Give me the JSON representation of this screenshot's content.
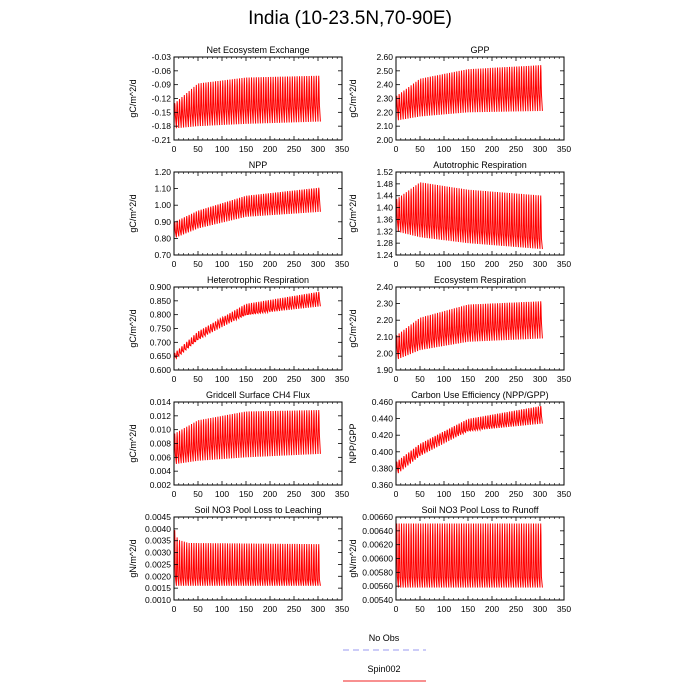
{
  "figure": {
    "title": "India (10-23.5N,70-90E)",
    "legend": {
      "entries": [
        {
          "label": "No Obs",
          "color": "#9a9af0",
          "style": "dashed"
        },
        {
          "label": "Spin002",
          "color": "#f02020",
          "style": "solid"
        }
      ]
    },
    "series_color": "#ff0000"
  },
  "chart_data": [
    {
      "type": "line",
      "title": "Net Ecosystem Exchange",
      "ylabel": "gC/m^2/d",
      "xlim": [
        0,
        350
      ],
      "xticks": [
        "0",
        "50",
        "100",
        "150",
        "200",
        "250",
        "300",
        "350"
      ],
      "ylim": [
        -0.21,
        -0.03
      ],
      "yticks": [
        "-0.21",
        "-0.18",
        "-0.15",
        "-0.12",
        "-0.09",
        "-0.06",
        "-0.03"
      ],
      "series": [
        {
          "x_range": [
            0,
            305
          ],
          "cycles": 61,
          "upper": [
            [
              0,
              -0.13
            ],
            [
              50,
              -0.085
            ],
            [
              150,
              -0.072
            ],
            [
              305,
              -0.068
            ]
          ],
          "lower": [
            [
              0,
              -0.185
            ],
            [
              50,
              -0.18
            ],
            [
              150,
              -0.175
            ],
            [
              305,
              -0.17
            ]
          ],
          "mid": [
            [
              0,
              -0.155
            ],
            [
              100,
              -0.14
            ],
            [
              305,
              -0.13
            ]
          ]
        }
      ]
    },
    {
      "type": "line",
      "title": "GPP",
      "ylabel": "gC/m^2/d",
      "xlim": [
        0,
        350
      ],
      "xticks": [
        "0",
        "50",
        "100",
        "150",
        "200",
        "250",
        "300",
        "350"
      ],
      "ylim": [
        2.0,
        2.6
      ],
      "yticks": [
        "2.00",
        "2.10",
        "2.20",
        "2.30",
        "2.40",
        "2.50",
        "2.60"
      ],
      "series": [
        {
          "x_range": [
            0,
            305
          ],
          "cycles": 61,
          "upper": [
            [
              0,
              2.32
            ],
            [
              50,
              2.45
            ],
            [
              150,
              2.52
            ],
            [
              305,
              2.55
            ]
          ],
          "lower": [
            [
              0,
              2.14
            ],
            [
              50,
              2.17
            ],
            [
              150,
              2.2
            ],
            [
              305,
              2.21
            ]
          ],
          "mid": [
            [
              0,
              2.24
            ],
            [
              100,
              2.31
            ],
            [
              305,
              2.35
            ]
          ]
        }
      ]
    },
    {
      "type": "line",
      "title": "NPP",
      "ylabel": "gC/m^2/d",
      "xlim": [
        0,
        350
      ],
      "xticks": [
        "0",
        "50",
        "100",
        "150",
        "200",
        "250",
        "300",
        "350"
      ],
      "ylim": [
        0.7,
        1.2
      ],
      "yticks": [
        "0.70",
        "0.80",
        "0.90",
        "1.00",
        "1.10",
        "1.20"
      ],
      "series": [
        {
          "x_range": [
            0,
            305
          ],
          "cycles": 61,
          "upper": [
            [
              0,
              0.9
            ],
            [
              50,
              0.97
            ],
            [
              150,
              1.06
            ],
            [
              305,
              1.11
            ]
          ],
          "lower": [
            [
              0,
              0.8
            ],
            [
              50,
              0.86
            ],
            [
              150,
              0.93
            ],
            [
              305,
              0.96
            ]
          ],
          "mid": [
            [
              0,
              0.84
            ],
            [
              100,
              0.96
            ],
            [
              305,
              1.05
            ]
          ]
        }
      ]
    },
    {
      "type": "line",
      "title": "Autotrophic Respiration",
      "ylabel": "gC/m^2/d",
      "xlim": [
        0,
        350
      ],
      "xticks": [
        "0",
        "50",
        "100",
        "150",
        "200",
        "250",
        "300",
        "350"
      ],
      "ylim": [
        1.24,
        1.52
      ],
      "yticks": [
        "1.24",
        "1.28",
        "1.32",
        "1.36",
        "1.40",
        "1.44",
        "1.48",
        "1.52"
      ],
      "series": [
        {
          "x_range": [
            0,
            305
          ],
          "cycles": 61,
          "upper": [
            [
              0,
              1.43
            ],
            [
              50,
              1.49
            ],
            [
              150,
              1.465
            ],
            [
              305,
              1.445
            ]
          ],
          "lower": [
            [
              0,
              1.32
            ],
            [
              50,
              1.3
            ],
            [
              150,
              1.28
            ],
            [
              305,
              1.26
            ]
          ],
          "mid": [
            [
              0,
              1.36
            ],
            [
              50,
              1.35
            ],
            [
              305,
              1.3
            ]
          ]
        }
      ]
    },
    {
      "type": "line",
      "title": "Heterotrophic Respiration",
      "ylabel": "gC/m^2/d",
      "xlim": [
        0,
        350
      ],
      "xticks": [
        "0",
        "50",
        "100",
        "150",
        "200",
        "250",
        "300",
        "350"
      ],
      "ylim": [
        0.6,
        0.9
      ],
      "yticks": [
        "0.600",
        "0.650",
        "0.700",
        "0.750",
        "0.800",
        "0.850",
        "0.900"
      ],
      "series": [
        {
          "x_range": [
            0,
            305
          ],
          "cycles": 61,
          "upper": [
            [
              0,
              0.66
            ],
            [
              50,
              0.74
            ],
            [
              150,
              0.84
            ],
            [
              305,
              0.885
            ]
          ],
          "lower": [
            [
              0,
              0.635
            ],
            [
              50,
              0.71
            ],
            [
              150,
              0.8
            ],
            [
              305,
              0.83
            ]
          ],
          "mid": [
            [
              0,
              0.645
            ],
            [
              100,
              0.78
            ],
            [
              305,
              0.86
            ]
          ]
        }
      ]
    },
    {
      "type": "line",
      "title": "Ecosystem Respiration",
      "ylabel": "gC/m^2/d",
      "xlim": [
        0,
        350
      ],
      "xticks": [
        "0",
        "50",
        "100",
        "150",
        "200",
        "250",
        "300",
        "350"
      ],
      "ylim": [
        1.9,
        2.4
      ],
      "yticks": [
        "1.90",
        "2.00",
        "2.10",
        "2.20",
        "2.30",
        "2.40"
      ],
      "series": [
        {
          "x_range": [
            0,
            305
          ],
          "cycles": 61,
          "upper": [
            [
              0,
              2.11
            ],
            [
              50,
              2.22
            ],
            [
              150,
              2.3
            ],
            [
              305,
              2.32
            ]
          ],
          "lower": [
            [
              0,
              1.96
            ],
            [
              50,
              2.02
            ],
            [
              150,
              2.07
            ],
            [
              305,
              2.09
            ]
          ],
          "mid": [
            [
              0,
              2.02
            ],
            [
              100,
              2.12
            ],
            [
              305,
              2.2
            ]
          ]
        }
      ]
    },
    {
      "type": "line",
      "title": "Gridcell Surface CH4 Flux",
      "ylabel": "gC/m^2/d",
      "xlim": [
        0,
        350
      ],
      "xticks": [
        "0",
        "50",
        "100",
        "150",
        "200",
        "250",
        "300",
        "350"
      ],
      "ylim": [
        0.002,
        0.014
      ],
      "yticks": [
        "0.002",
        "0.004",
        "0.006",
        "0.008",
        "0.010",
        "0.012",
        "0.014"
      ],
      "series": [
        {
          "x_range": [
            0,
            305
          ],
          "cycles": 61,
          "upper": [
            [
              0,
              0.0095
            ],
            [
              50,
              0.0115
            ],
            [
              150,
              0.0128
            ],
            [
              305,
              0.013
            ]
          ],
          "lower": [
            [
              0,
              0.005
            ],
            [
              50,
              0.0055
            ],
            [
              150,
              0.006
            ],
            [
              305,
              0.0065
            ]
          ],
          "mid": [
            [
              0,
              0.0065
            ],
            [
              100,
              0.0085
            ],
            [
              305,
              0.0095
            ]
          ]
        }
      ]
    },
    {
      "type": "line",
      "title": "Carbon Use Efficiency (NPP/GPP)",
      "ylabel": "NPP/GPP",
      "xlim": [
        0,
        350
      ],
      "xticks": [
        "0",
        "50",
        "100",
        "150",
        "200",
        "250",
        "300",
        "350"
      ],
      "ylim": [
        0.36,
        0.46
      ],
      "yticks": [
        "0.360",
        "0.380",
        "0.400",
        "0.420",
        "0.440",
        "0.460"
      ],
      "series": [
        {
          "x_range": [
            0,
            305
          ],
          "cycles": 61,
          "upper": [
            [
              0,
              0.388
            ],
            [
              50,
              0.41
            ],
            [
              150,
              0.44
            ],
            [
              305,
              0.456
            ]
          ],
          "lower": [
            [
              0,
              0.372
            ],
            [
              50,
              0.395
            ],
            [
              150,
              0.425
            ],
            [
              305,
              0.434
            ]
          ],
          "mid": [
            [
              0,
              0.38
            ],
            [
              100,
              0.42
            ],
            [
              305,
              0.445
            ]
          ]
        }
      ]
    },
    {
      "type": "line",
      "title": "Soil NO3 Pool Loss to Leaching",
      "ylabel": "gN/m^2/d",
      "xlim": [
        0,
        350
      ],
      "xticks": [
        "0",
        "50",
        "100",
        "150",
        "200",
        "250",
        "300",
        "350"
      ],
      "ylim": [
        0.001,
        0.0045
      ],
      "yticks": [
        "0.0010",
        "0.0015",
        "0.0020",
        "0.0025",
        "0.0030",
        "0.0035",
        "0.0040",
        "0.0045"
      ],
      "series": [
        {
          "x_range": [
            0,
            305
          ],
          "cycles": 61,
          "upper": [
            [
              0,
              0.0041
            ],
            [
              8,
              0.0036
            ],
            [
              30,
              0.00345
            ],
            [
              305,
              0.0034
            ]
          ],
          "lower": [
            [
              0,
              0.0016
            ],
            [
              305,
              0.0016
            ]
          ],
          "mid": [
            [
              0,
              0.002
            ],
            [
              305,
              0.0019
            ]
          ]
        }
      ]
    },
    {
      "type": "line",
      "title": "Soil NO3 Pool Loss to Runoff",
      "ylabel": "gN/m^2/d",
      "xlim": [
        0,
        350
      ],
      "xticks": [
        "0",
        "50",
        "100",
        "150",
        "200",
        "250",
        "300",
        "350"
      ],
      "ylim": [
        0.0054,
        0.0066
      ],
      "yticks": [
        "0.00540",
        "0.00560",
        "0.00580",
        "0.00600",
        "0.00620",
        "0.00640",
        "0.00660"
      ],
      "series": [
        {
          "x_range": [
            0,
            305
          ],
          "cycles": 61,
          "upper": [
            [
              0,
              0.00653
            ],
            [
              305,
              0.00653
            ]
          ],
          "lower": [
            [
              0,
              0.00558
            ],
            [
              305,
              0.00558
            ]
          ],
          "mid": [
            [
              0,
              0.00575
            ],
            [
              305,
              0.00575
            ]
          ]
        }
      ]
    }
  ]
}
